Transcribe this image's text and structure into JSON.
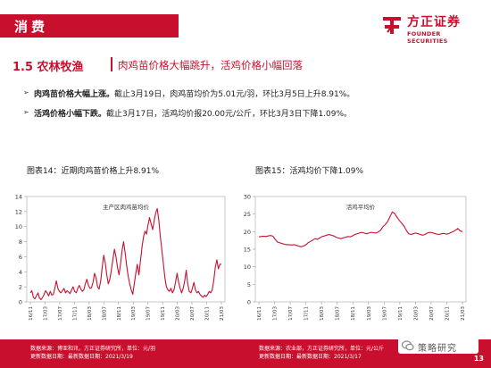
{
  "header": {
    "category": "消费",
    "logo_cn": "方正证券",
    "logo_en": "FOUNDER SECURITIES",
    "brand_color": "#c8102e"
  },
  "section": {
    "number_title": "1.5 农林牧渔",
    "subtitle": "肉鸡苗价格大幅跳升，活鸡价格小幅回落"
  },
  "bullets": [
    {
      "bold": "肉鸡苗价格大幅上涨。",
      "text": "截止3月19日，肉鸡苗均价为5.01元/羽，环比3月5日上升8.91%。"
    },
    {
      "bold": "活鸡价格小幅下跌。",
      "text": "截止3月17日，活鸡均价报20.00元/公斤，环比3月3日下降1.09%。"
    }
  ],
  "charts": [
    {
      "caption": "图表14：近期肉鸡苗价格上升8.91%",
      "footer_lines": [
        "数据来源：博亚和讯，方正证券研究所，单位：元/羽",
        "更新数据日期：最新数据日期：2021/3/19"
      ]
    },
    {
      "caption": "图表15：活鸡均价下降1.09%",
      "footer_lines": [
        "数据来源：农业部，方正证券研究所，单位：元/公斤",
        "更新数据日期：最新数据日期：2021/3/17"
      ]
    }
  ],
  "chart_data": [
    {
      "type": "line",
      "title": "主产区肉鸡苗均价",
      "xlabel": "",
      "ylabel": "",
      "ylim": [
        0,
        14
      ],
      "yticks": [
        0,
        2,
        4,
        6,
        8,
        10,
        12,
        14
      ],
      "grid": false,
      "color": "#c8102e",
      "xtick_labels": [
        "16/11",
        "17/03",
        "17/07",
        "17/11",
        "18/03",
        "18/07",
        "18/11",
        "19/03",
        "19/07",
        "19/11",
        "20/03",
        "20/07",
        "20/11",
        "21/03"
      ],
      "values": [
        1.2,
        1.5,
        0.6,
        0.4,
        0.8,
        1.2,
        0.5,
        0.3,
        0.6,
        1.0,
        1.5,
        1.2,
        0.8,
        1.4,
        0.9,
        1.0,
        1.8,
        2.8,
        1.8,
        1.4,
        1.2,
        1.5,
        1.8,
        1.2,
        1.5,
        1.3,
        1.1,
        1.6,
        2.0,
        1.4,
        1.2,
        1.8,
        2.2,
        1.7,
        1.4,
        1.6,
        2.4,
        3.0,
        2.2,
        1.8,
        1.9,
        2.6,
        3.8,
        3.2,
        2.0,
        1.7,
        2.8,
        4.6,
        6.2,
        5.2,
        3.6,
        2.4,
        3.0,
        4.2,
        5.6,
        7.0,
        6.0,
        4.6,
        3.6,
        5.0,
        6.8,
        8.0,
        6.6,
        4.8,
        3.4,
        2.4,
        1.6,
        1.0,
        2.4,
        3.8,
        5.0,
        3.6,
        5.4,
        7.2,
        8.6,
        9.4,
        9.0,
        10.2,
        11.2,
        10.4,
        9.6,
        10.8,
        11.8,
        12.4,
        11.0,
        8.8,
        7.0,
        5.2,
        3.2,
        2.0,
        1.6,
        1.4,
        1.8,
        1.2,
        1.6,
        2.6,
        3.8,
        2.6,
        1.8,
        1.2,
        1.8,
        2.8,
        4.2,
        2.4,
        1.4,
        1.2,
        1.8,
        2.6,
        1.6,
        1.2,
        1.4,
        1.0,
        0.8,
        0.6,
        0.9,
        0.7,
        1.0,
        1.4,
        1.2,
        1.6,
        2.8,
        4.6,
        5.6,
        4.4,
        5.0,
        5.01
      ]
    },
    {
      "type": "line",
      "title": "活鸡平均价",
      "xlabel": "",
      "ylabel": "",
      "ylim": [
        0,
        30
      ],
      "yticks": [
        0,
        5,
        10,
        15,
        20,
        25,
        30
      ],
      "grid": false,
      "color": "#c8102e",
      "xtick_labels": [
        "16/11",
        "17/03",
        "17/07",
        "17/11",
        "18/03",
        "18/07",
        "18/11",
        "19/03",
        "19/07",
        "19/11",
        "20/03",
        "20/07",
        "20/11",
        "21/03"
      ],
      "values": [
        18.5,
        18.6,
        18.7,
        18.6,
        18.8,
        18.9,
        18.7,
        17.8,
        17.0,
        16.8,
        16.6,
        16.4,
        16.3,
        16.3,
        16.2,
        16.3,
        16.1,
        15.9,
        15.7,
        15.9,
        16.2,
        16.8,
        17.2,
        17.6,
        18.0,
        17.8,
        18.2,
        18.6,
        18.8,
        19.0,
        19.2,
        19.0,
        18.8,
        18.4,
        18.2,
        18.0,
        18.2,
        18.4,
        18.6,
        18.5,
        18.8,
        19.2,
        19.4,
        19.6,
        19.8,
        19.6,
        19.4,
        19.6,
        19.8,
        19.7,
        19.6,
        19.9,
        20.4,
        21.4,
        22.0,
        22.8,
        24.2,
        25.6,
        25.2,
        24.2,
        23.2,
        22.4,
        21.6,
        20.4,
        19.4,
        19.2,
        19.4,
        19.6,
        19.4,
        19.2,
        19.0,
        19.2,
        19.6,
        19.8,
        19.7,
        19.5,
        19.3,
        19.2,
        19.4,
        19.5,
        19.3,
        19.4,
        19.7,
        20.0,
        20.4,
        20.9,
        20.2,
        20.0
      ]
    }
  ],
  "page": {
    "number": "13",
    "watermark": "策略研究"
  }
}
